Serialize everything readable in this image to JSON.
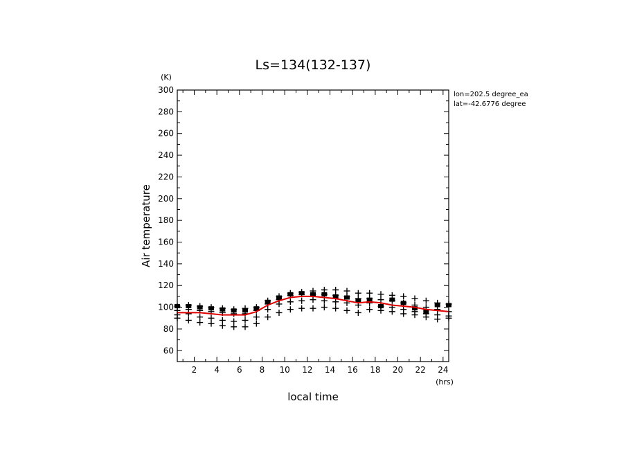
{
  "chart_data": {
    "type": "scatter",
    "title": "Ls=134(132-137)",
    "xlabel": "local time",
    "xunit": "(hrs)",
    "ylabel": "Air temperature",
    "yunit": "(K)",
    "xlim": [
      0.5,
      24.5
    ],
    "ylim": [
      50,
      300
    ],
    "x_tick_labels": [
      "2",
      "4",
      "6",
      "8",
      "10",
      "12",
      "14",
      "16",
      "18",
      "20",
      "22",
      "24"
    ],
    "y_tick_labels": [
      "60",
      "80",
      "100",
      "120",
      "140",
      "160",
      "180",
      "200",
      "220",
      "240",
      "260",
      "280",
      "300"
    ],
    "info": [
      "lon=202.5 degree_ea",
      "lat=-42.6776 degree"
    ],
    "grid": false,
    "series": [
      {
        "marker": "plus",
        "color": "#000000",
        "points": [
          [
            0.5,
            101
          ],
          [
            0.5,
            97
          ],
          [
            0.5,
            93
          ],
          [
            0.5,
            90
          ],
          [
            1.5,
            102
          ],
          [
            1.5,
            98
          ],
          [
            1.5,
            94
          ],
          [
            1.5,
            88
          ],
          [
            2.5,
            101
          ],
          [
            2.5,
            97
          ],
          [
            2.5,
            91
          ],
          [
            2.5,
            86
          ],
          [
            3.5,
            100
          ],
          [
            3.5,
            96
          ],
          [
            3.5,
            90
          ],
          [
            3.5,
            85
          ],
          [
            4.5,
            99
          ],
          [
            4.5,
            95
          ],
          [
            4.5,
            88
          ],
          [
            4.5,
            83
          ],
          [
            5.5,
            98
          ],
          [
            5.5,
            94
          ],
          [
            5.5,
            87
          ],
          [
            5.5,
            82
          ],
          [
            6.5,
            99
          ],
          [
            6.5,
            94
          ],
          [
            6.5,
            88
          ],
          [
            6.5,
            82
          ],
          [
            7.5,
            100
          ],
          [
            7.5,
            97
          ],
          [
            7.5,
            91
          ],
          [
            7.5,
            85
          ],
          [
            8.5,
            106
          ],
          [
            8.5,
            103
          ],
          [
            8.5,
            98
          ],
          [
            8.5,
            91
          ],
          [
            9.5,
            110
          ],
          [
            9.5,
            107
          ],
          [
            9.5,
            103
          ],
          [
            9.5,
            95
          ],
          [
            10.5,
            113
          ],
          [
            10.5,
            111
          ],
          [
            10.5,
            105
          ],
          [
            10.5,
            98
          ],
          [
            11.5,
            114
          ],
          [
            11.5,
            112
          ],
          [
            11.5,
            106
          ],
          [
            11.5,
            99
          ],
          [
            12.5,
            115
          ],
          [
            12.5,
            112
          ],
          [
            12.5,
            107
          ],
          [
            12.5,
            99
          ],
          [
            13.5,
            116
          ],
          [
            13.5,
            112
          ],
          [
            13.5,
            106
          ],
          [
            13.5,
            100
          ],
          [
            14.5,
            116
          ],
          [
            14.5,
            111
          ],
          [
            14.5,
            105
          ],
          [
            14.5,
            99
          ],
          [
            15.5,
            115
          ],
          [
            15.5,
            110
          ],
          [
            15.5,
            104
          ],
          [
            15.5,
            97
          ],
          [
            16.5,
            113
          ],
          [
            16.5,
            108
          ],
          [
            16.5,
            102
          ],
          [
            16.5,
            95
          ],
          [
            17.5,
            113
          ],
          [
            17.5,
            108
          ],
          [
            17.5,
            104
          ],
          [
            17.5,
            98
          ],
          [
            18.5,
            112
          ],
          [
            18.5,
            107
          ],
          [
            18.5,
            101
          ],
          [
            18.5,
            97
          ],
          [
            19.5,
            111
          ],
          [
            19.5,
            106
          ],
          [
            19.5,
            100
          ],
          [
            19.5,
            96
          ],
          [
            20.5,
            110
          ],
          [
            20.5,
            104
          ],
          [
            20.5,
            98
          ],
          [
            20.5,
            94
          ],
          [
            21.5,
            108
          ],
          [
            21.5,
            102
          ],
          [
            21.5,
            96
          ],
          [
            21.5,
            93
          ],
          [
            22.5,
            106
          ],
          [
            22.5,
            100
          ],
          [
            22.5,
            94
          ],
          [
            22.5,
            91
          ],
          [
            23.5,
            104
          ],
          [
            23.5,
            98
          ],
          [
            23.5,
            93
          ],
          [
            23.5,
            89
          ],
          [
            24.5,
            103
          ],
          [
            24.5,
            96
          ],
          [
            24.5,
            92
          ],
          [
            24.5,
            90
          ]
        ]
      },
      {
        "marker": "square",
        "color": "#000000",
        "points": [
          [
            0.5,
            101
          ],
          [
            1.5,
            101
          ],
          [
            2.5,
            100
          ],
          [
            3.5,
            99
          ],
          [
            4.5,
            98
          ],
          [
            5.5,
            97
          ],
          [
            6.5,
            97
          ],
          [
            7.5,
            99
          ],
          [
            8.5,
            105
          ],
          [
            9.5,
            109
          ],
          [
            10.5,
            112
          ],
          [
            11.5,
            113
          ],
          [
            12.5,
            112
          ],
          [
            13.5,
            112
          ],
          [
            14.5,
            110
          ],
          [
            15.5,
            109
          ],
          [
            16.5,
            106
          ],
          [
            17.5,
            107
          ],
          [
            18.5,
            101
          ],
          [
            19.5,
            107
          ],
          [
            20.5,
            104
          ],
          [
            21.5,
            99
          ],
          [
            22.5,
            96
          ],
          [
            23.5,
            102
          ],
          [
            24.5,
            102
          ]
        ]
      },
      {
        "marker": "line",
        "color": "#e00000",
        "points": [
          [
            0.5,
            95
          ],
          [
            1.5,
            95
          ],
          [
            2.5,
            95
          ],
          [
            3.5,
            94
          ],
          [
            4.5,
            93
          ],
          [
            5.5,
            93
          ],
          [
            6.5,
            93
          ],
          [
            7.5,
            96
          ],
          [
            8.5,
            102
          ],
          [
            9.5,
            106
          ],
          [
            10.5,
            109
          ],
          [
            11.5,
            110
          ],
          [
            12.5,
            110
          ],
          [
            13.5,
            109
          ],
          [
            14.5,
            108
          ],
          [
            15.5,
            106
          ],
          [
            16.5,
            104
          ],
          [
            17.5,
            105
          ],
          [
            18.5,
            104
          ],
          [
            19.5,
            102
          ],
          [
            20.5,
            101
          ],
          [
            21.5,
            100
          ],
          [
            22.5,
            98
          ],
          [
            23.5,
            97
          ],
          [
            24.5,
            96
          ]
        ]
      }
    ]
  }
}
